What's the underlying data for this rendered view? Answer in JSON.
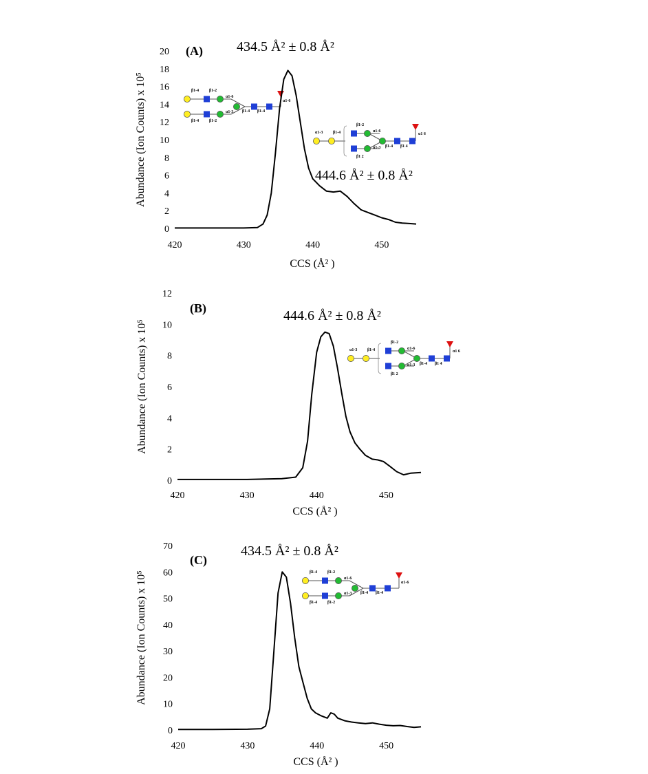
{
  "chart_data": [
    {
      "type": "line",
      "panel_label": "(A)",
      "xlabel": "CCS (Å² )",
      "ylabel": "Abundance (Ion Counts)  x 10⁵",
      "xlim": [
        420,
        455
      ],
      "ylim": [
        0,
        20
      ],
      "x_ticks": [
        "420",
        "430",
        "440",
        "450"
      ],
      "y_ticks": [
        "0",
        "2",
        "4",
        "6",
        "8",
        "10",
        "12",
        "14",
        "16",
        "18",
        "20"
      ],
      "annotations": [
        "434.5 Å² ± 0.8 Å²",
        "444.6 Å² ± 0.8 Å²"
      ],
      "series": [
        {
          "x": [
            420,
            425,
            430,
            432,
            432.8,
            433.4,
            434,
            434.6,
            435.2,
            435.8,
            436.4,
            437,
            437.6,
            438.2,
            438.8,
            439.4,
            440,
            441,
            442,
            443,
            444,
            445,
            446,
            447,
            448,
            449,
            450,
            451,
            452,
            453,
            454,
            455
          ],
          "y": [
            0.05,
            0.05,
            0.05,
            0.1,
            0.5,
            1.5,
            4,
            8.5,
            13.5,
            16.8,
            17.8,
            17.2,
            15,
            12,
            9,
            6.8,
            5.6,
            4.8,
            4.2,
            4.1,
            4.2,
            3.6,
            2.8,
            2.1,
            1.8,
            1.5,
            1.2,
            1.0,
            0.7,
            0.6,
            0.55,
            0.5
          ]
        }
      ]
    },
    {
      "type": "line",
      "panel_label": "(B)",
      "xlabel": "CCS (Å² )",
      "ylabel": "Abundance (Ion Counts)  x 10⁵",
      "xlim": [
        420,
        455
      ],
      "ylim": [
        0,
        12
      ],
      "x_ticks": [
        "420",
        "430",
        "440",
        "450"
      ],
      "y_ticks": [
        "0",
        "2",
        "4",
        "6",
        "8",
        "10",
        "12"
      ],
      "annotations": [
        "444.6 Å² ± 0.8 Å²"
      ],
      "series": [
        {
          "x": [
            420,
            425,
            430,
            435,
            437,
            438,
            438.7,
            439.3,
            440,
            440.6,
            441.2,
            441.8,
            442.4,
            443,
            443.6,
            444.2,
            444.8,
            445.5,
            446.2,
            447,
            448,
            448.8,
            449.6,
            450.5,
            451.5,
            452.5,
            453.5,
            455
          ],
          "y": [
            0.05,
            0.05,
            0.05,
            0.1,
            0.2,
            0.8,
            2.5,
            5.5,
            8.2,
            9.2,
            9.5,
            9.4,
            8.6,
            7.2,
            5.6,
            4.1,
            3.1,
            2.4,
            2.0,
            1.6,
            1.35,
            1.3,
            1.2,
            0.9,
            0.55,
            0.35,
            0.45,
            0.5
          ]
        }
      ]
    },
    {
      "type": "line",
      "panel_label": "(C)",
      "xlabel": "CCS (Å² )",
      "ylabel": "Abundance (Ion Counts)  x 10⁵",
      "xlim": [
        420,
        455
      ],
      "ylim": [
        0,
        70
      ],
      "x_ticks": [
        "420",
        "430",
        "440",
        "450"
      ],
      "y_ticks": [
        "0",
        "10",
        "20",
        "30",
        "40",
        "50",
        "60",
        "70"
      ],
      "annotations": [
        "434.5 Å² ± 0.8 Å²"
      ],
      "series": [
        {
          "x": [
            420,
            425,
            430,
            432,
            432.6,
            433.2,
            433.8,
            434.4,
            435,
            435.6,
            436.2,
            436.8,
            437.4,
            438,
            438.6,
            439.2,
            439.8,
            440.5,
            441,
            441.5,
            442,
            442.5,
            443,
            443.5,
            444,
            445,
            446,
            447,
            448,
            449,
            450,
            451,
            452,
            453,
            454,
            455
          ],
          "y": [
            0.2,
            0.2,
            0.3,
            0.5,
            1.5,
            8,
            30,
            52,
            60,
            58,
            48,
            35,
            24,
            18,
            12,
            8,
            6.5,
            5.5,
            5,
            4.5,
            6.5,
            6,
            4.5,
            4,
            3.5,
            3,
            2.7,
            2.4,
            2.7,
            2.2,
            1.8,
            1.6,
            1.7,
            1.3,
            1.0,
            1.2
          ]
        }
      ]
    }
  ]
}
